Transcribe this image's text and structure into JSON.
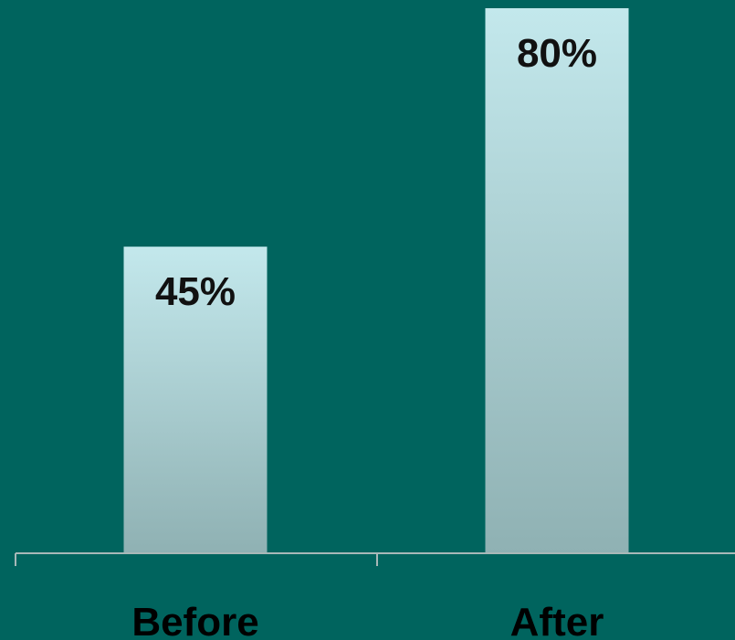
{
  "chart_data": {
    "type": "bar",
    "categories": [
      "Before",
      "After"
    ],
    "values": [
      45,
      80
    ],
    "value_labels": [
      "45%",
      "80%"
    ],
    "title": "",
    "xlabel": "",
    "ylabel": "",
    "ylim": [
      0,
      80
    ],
    "grid": false,
    "colors": {
      "background": "#00645E",
      "bar_top": "#C3E8EC",
      "bar_bottom": "#8FB1B3",
      "axis": "#A8B8B8"
    }
  }
}
